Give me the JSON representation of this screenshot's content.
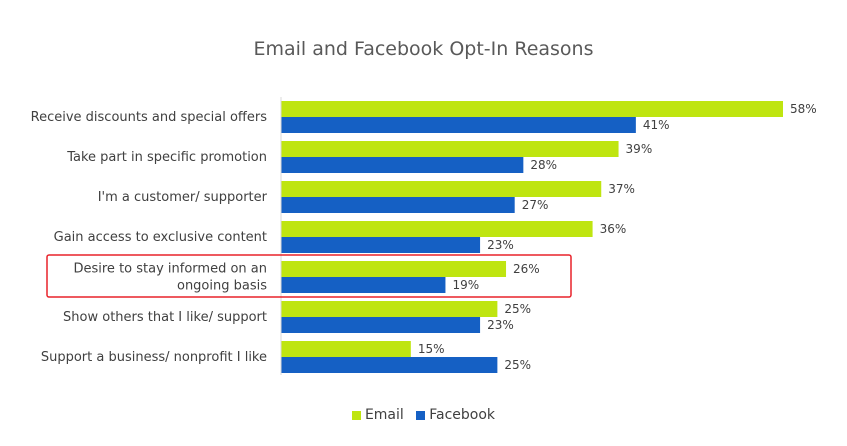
{
  "chart_data": {
    "type": "bar",
    "orientation": "horizontal",
    "title": "Email and Facebook Opt-In Reasons",
    "categories": [
      [
        "Receive discounts and special offers"
      ],
      [
        "Take part in specific promotion"
      ],
      [
        "I'm a customer/ supporter"
      ],
      [
        "Gain access to exclusive content"
      ],
      [
        "Desire to stay informed on an",
        "ongoing basis"
      ],
      [
        "Show others that I like/ support"
      ],
      [
        "Support a business/ nonprofit I like"
      ]
    ],
    "series": [
      {
        "name": "Email",
        "color": "#bfe510",
        "values": [
          58,
          39,
          37,
          36,
          26,
          25,
          15
        ],
        "labels": [
          "58%",
          "39%",
          "37%",
          "36%",
          "26%",
          "25%",
          "15%"
        ]
      },
      {
        "name": "Facebook",
        "color": "#1560c4",
        "values": [
          41,
          28,
          27,
          23,
          19,
          23,
          25
        ],
        "labels": [
          "41%",
          "28%",
          "27%",
          "23%",
          "19%",
          "23%",
          "25%"
        ]
      }
    ],
    "xlim": [
      0,
      58
    ],
    "grid": false,
    "legend_position": "bottom",
    "highlighted_category_index": 4,
    "highlight_color": "#e8222a"
  }
}
